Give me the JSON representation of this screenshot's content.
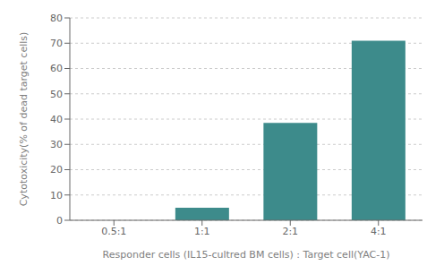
{
  "chart_data": {
    "type": "bar",
    "categories": [
      "0.5:1",
      "1:1",
      "2:1",
      "4:1"
    ],
    "values": [
      0,
      5,
      38.5,
      71
    ],
    "color": "#3d8b8b",
    "ylim": [
      0,
      80
    ],
    "yticks": [
      0,
      10,
      20,
      30,
      40,
      50,
      60,
      70,
      80
    ],
    "ylabel": "Cytotoxicity(% of dead target cells)",
    "xlabel": "Responder cells (IL15-cultred BM cells) : Target cell(YAC-1)",
    "grid": true
  }
}
